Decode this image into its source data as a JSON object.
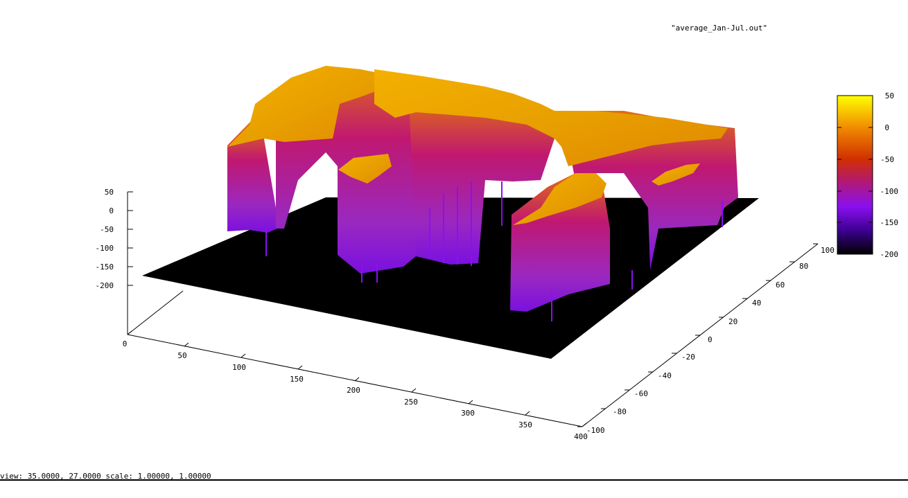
{
  "window": {
    "status_text": "view: 35.0000, 27.0000 scale: 1.00000, 1.00000"
  },
  "chart_data": {
    "type": "surface3d",
    "title": "\"average_Jan-Jul.out\"",
    "view": {
      "rot_x": 35.0,
      "rot_z": 27.0,
      "scale": [
        1.0,
        1.0
      ]
    },
    "x_axis": {
      "range": [
        0,
        400
      ],
      "ticks": [
        "0",
        "50",
        "100",
        "150",
        "200",
        "250",
        "300",
        "350",
        "400"
      ]
    },
    "y_axis": {
      "range": [
        -100,
        100
      ],
      "ticks": [
        "-100",
        "-80",
        "-60",
        "-40",
        "-20",
        "0",
        "20",
        "40",
        "60",
        "80",
        "100"
      ]
    },
    "z_axis": {
      "range": [
        -200,
        50
      ],
      "ticks": [
        "50",
        "0",
        "-50",
        "-100",
        "-150",
        "-200"
      ]
    },
    "colorbar": {
      "range": [
        -200,
        50
      ],
      "ticks": [
        "50",
        "0",
        "-50",
        "-100",
        "-150",
        "-200"
      ],
      "palette": [
        "#000000",
        "#5a00c8",
        "#8a10f0",
        "#c0147a",
        "#d84010",
        "#f08c00",
        "#ffff00"
      ]
    },
    "surface_colors": {
      "land": "#f0a000",
      "walls": "#c01870",
      "ocean_floor": "#000000"
    }
  }
}
